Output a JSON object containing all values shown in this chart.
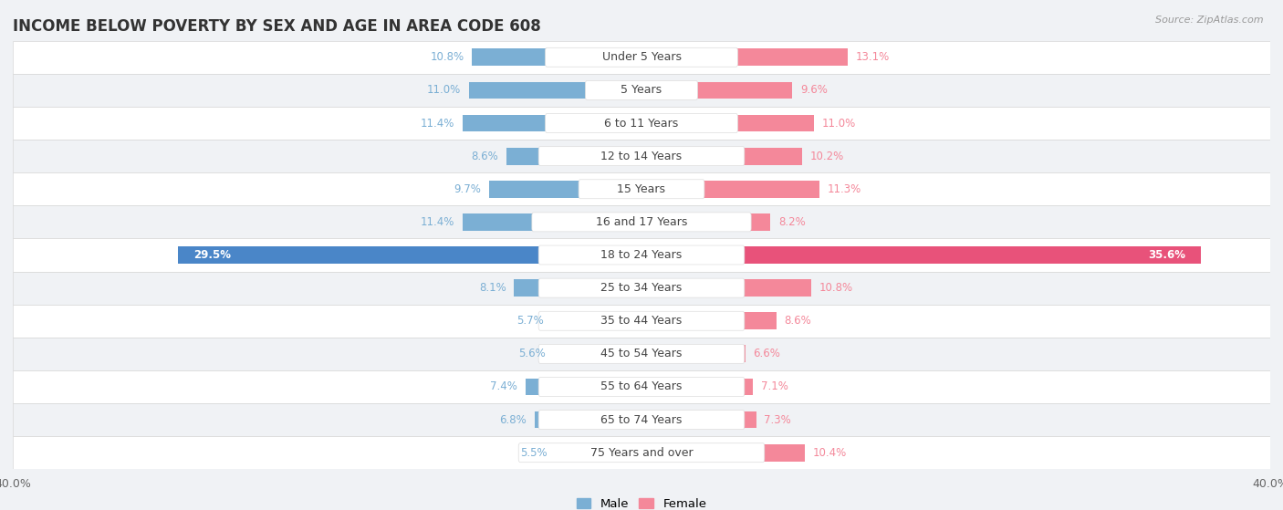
{
  "title": "INCOME BELOW POVERTY BY SEX AND AGE IN AREA CODE 608",
  "source": "Source: ZipAtlas.com",
  "categories": [
    "Under 5 Years",
    "5 Years",
    "6 to 11 Years",
    "12 to 14 Years",
    "15 Years",
    "16 and 17 Years",
    "18 to 24 Years",
    "25 to 34 Years",
    "35 to 44 Years",
    "45 to 54 Years",
    "55 to 64 Years",
    "65 to 74 Years",
    "75 Years and over"
  ],
  "male": [
    10.8,
    11.0,
    11.4,
    8.6,
    9.7,
    11.4,
    29.5,
    8.1,
    5.7,
    5.6,
    7.4,
    6.8,
    5.5
  ],
  "female": [
    13.1,
    9.6,
    11.0,
    10.2,
    11.3,
    8.2,
    35.6,
    10.8,
    8.6,
    6.6,
    7.1,
    7.3,
    10.4
  ],
  "male_color": "#7bafd4",
  "female_color": "#f4889a",
  "male_highlight_color": "#4a86c8",
  "female_highlight_color": "#e8527a",
  "male_label_color": "#7bafd4",
  "female_label_color": "#f4889a",
  "background_color": "#f0f2f5",
  "row_bg_even": "#ffffff",
  "row_bg_odd": "#f0f2f5",
  "max_val": 40.0,
  "title_fontsize": 12,
  "label_fontsize": 9,
  "tick_fontsize": 9,
  "value_fontsize": 8.5
}
